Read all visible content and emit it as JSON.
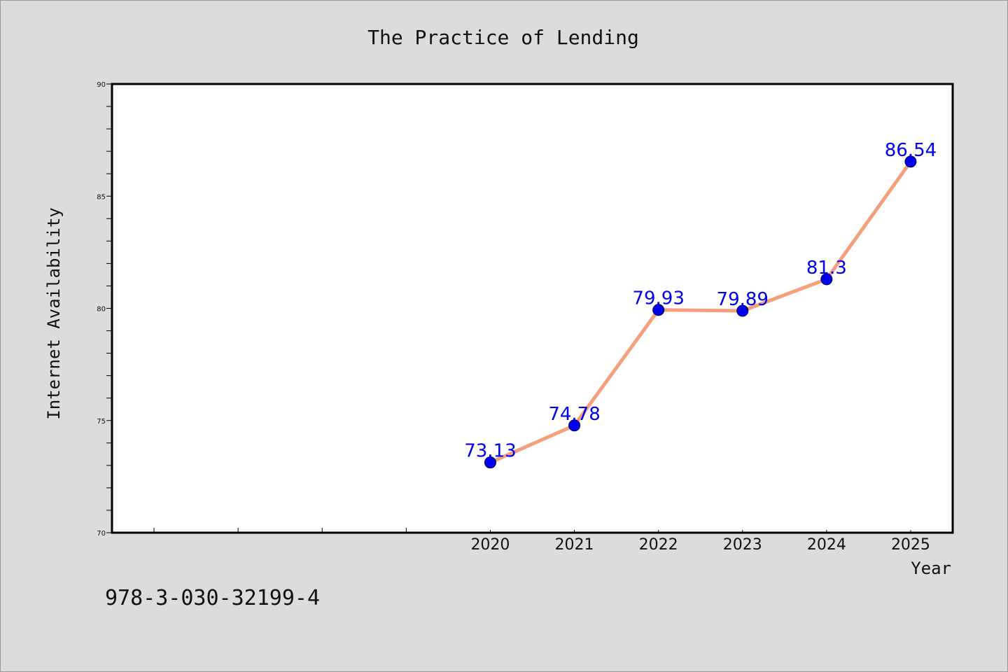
{
  "chart_data": {
    "type": "line",
    "title": "The Practice of Lending",
    "xlabel": "Year",
    "ylabel": "Internet Availability",
    "x": [
      2020,
      2021,
      2022,
      2023,
      2024,
      2025
    ],
    "series": [
      {
        "values": [
          73.13,
          74.78,
          79.93,
          79.89,
          81.3,
          86.54
        ],
        "labels": [
          "73.13",
          "74.78",
          "79.93",
          "79.89",
          "81.3",
          "86.54"
        ]
      }
    ],
    "x_tick_labels": [
      "2020",
      "2021",
      "2022",
      "2023",
      "2024",
      "2025"
    ],
    "y_tick_labels": [
      "70",
      "75",
      "80",
      "85",
      "90"
    ],
    "y_ticks": [
      70,
      75,
      80,
      85,
      90
    ],
    "ylim": [
      70,
      90
    ],
    "xlim": [
      2015.5,
      2025.5
    ],
    "grid": false,
    "line_color": "#f4a07c",
    "marker_color": "#0000ee",
    "label_color": "#0000ee"
  },
  "footer": {
    "isbn": "978-3-030-32199-4"
  }
}
